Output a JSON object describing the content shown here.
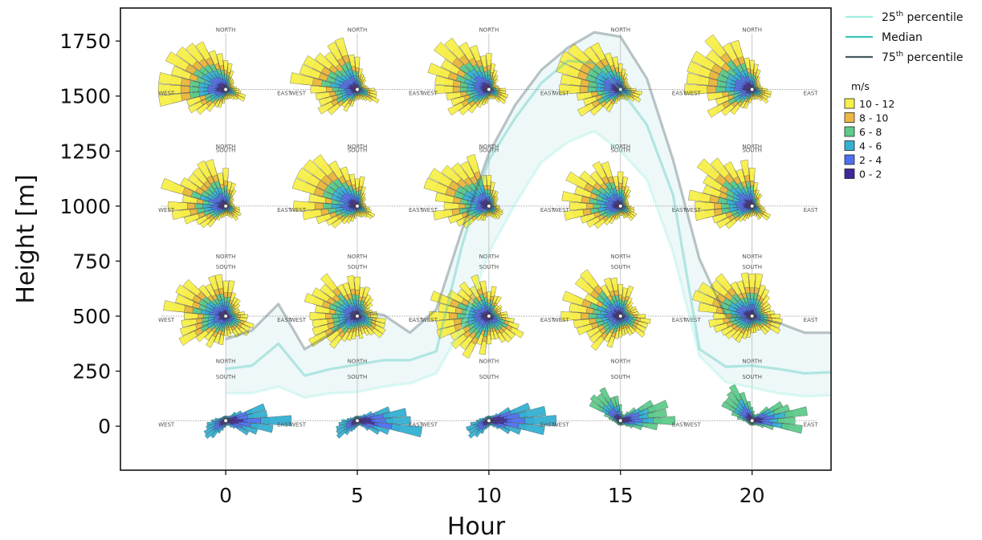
{
  "chart_data": {
    "type": "line",
    "xlabel": "Hour",
    "ylabel": "Height [m]",
    "xlim": [
      -4,
      23
    ],
    "ylim": [
      -200,
      1900
    ],
    "x_ticks": [
      0,
      5,
      10,
      15,
      20
    ],
    "y_ticks": [
      0,
      250,
      500,
      750,
      1000,
      1250,
      1500,
      1750
    ],
    "x_tick_labels": [
      "0",
      "5",
      "10",
      "15",
      "20"
    ],
    "y_tick_labels": [
      "0",
      "250",
      "500",
      "750",
      "1000",
      "1250",
      "1500",
      "1750"
    ],
    "x": [
      0,
      1,
      2,
      3,
      4,
      5,
      6,
      7,
      8,
      9,
      10,
      11,
      12,
      13,
      14,
      15,
      16,
      17,
      18,
      19,
      20,
      21,
      22,
      23
    ],
    "series": [
      {
        "name": "25th percentile",
        "color": "#9ff0df",
        "values": [
          150,
          150,
          180,
          130,
          150,
          155,
          180,
          195,
          240,
          450,
          790,
          1010,
          1200,
          1290,
          1340,
          1250,
          1120,
          790,
          320,
          200,
          175,
          150,
          135,
          140
        ]
      },
      {
        "name": "Median",
        "color": "#3cc4b4",
        "values": [
          260,
          275,
          375,
          230,
          260,
          280,
          300,
          300,
          340,
          830,
          1210,
          1400,
          1560,
          1660,
          1650,
          1530,
          1370,
          1050,
          350,
          270,
          275,
          260,
          240,
          245
        ]
      },
      {
        "name": "75th percentile",
        "color": "#435a5e",
        "values": [
          395,
          435,
          555,
          350,
          420,
          525,
          505,
          425,
          530,
          900,
          1240,
          1460,
          1620,
          1720,
          1790,
          1770,
          1580,
          1210,
          760,
          500,
          490,
          470,
          425,
          425
        ]
      }
    ],
    "band": {
      "from": "25th percentile",
      "to": "75th percentile",
      "fill": "#e8f6f7"
    },
    "legend_placement": "outside right, top",
    "grid": false,
    "windrose_legend": {
      "title": "m/s",
      "bins": [
        {
          "label": "10 - 12",
          "color": "#f7ef4a"
        },
        {
          "label": "8 - 10",
          "color": "#f0b740"
        },
        {
          "label": "6 - 8",
          "color": "#5ecb8a"
        },
        {
          "label": "4 - 6",
          "color": "#34b0d2"
        },
        {
          "label": "2 - 4",
          "color": "#4d6ff0"
        },
        {
          "label": "0 - 2",
          "color": "#40279a"
        }
      ]
    },
    "windrose_compass_labels": {
      "north": "NORTH",
      "south": "SOUTH",
      "east": "EAST",
      "west": "WEST"
    },
    "windrose_hours": [
      0,
      5,
      10,
      15,
      20
    ],
    "windrose_heights": [
      25,
      500,
      1000,
      1530
    ]
  }
}
